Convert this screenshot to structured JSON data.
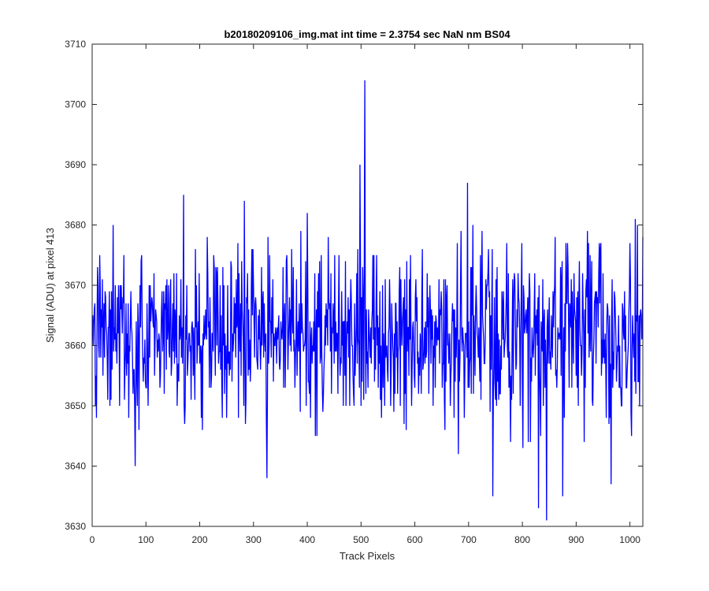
{
  "chart_data": {
    "type": "line",
    "title": "b20180209106_img.mat int time = 2.3754 sec  NaN nm BS04",
    "xlabel": "Track Pixels",
    "ylabel": "Signal (ADU) at pixel 413",
    "xlim": [
      0,
      1024
    ],
    "ylim": [
      3630,
      3710
    ],
    "xticks": [
      0,
      100,
      200,
      300,
      400,
      500,
      600,
      700,
      800,
      900,
      1000
    ],
    "yticks": [
      3630,
      3640,
      3650,
      3660,
      3670,
      3680,
      3690,
      3700,
      3710
    ],
    "grid": false,
    "legend": "none",
    "series_color": "#0000ff",
    "noise_mean": 3662,
    "noise_sd": 7,
    "notable_points": [
      {
        "x": 80,
        "y": 3640
      },
      {
        "x": 170,
        "y": 3685
      },
      {
        "x": 283,
        "y": 3684
      },
      {
        "x": 325,
        "y": 3638
      },
      {
        "x": 400,
        "y": 3682
      },
      {
        "x": 498,
        "y": 3690
      },
      {
        "x": 507,
        "y": 3704
      },
      {
        "x": 698,
        "y": 3687
      },
      {
        "x": 745,
        "y": 3635
      },
      {
        "x": 830,
        "y": 3633
      },
      {
        "x": 845,
        "y": 3631
      },
      {
        "x": 875,
        "y": 3635
      },
      {
        "x": 965,
        "y": 3637
      },
      {
        "x": 1010,
        "y": 3681
      }
    ]
  }
}
